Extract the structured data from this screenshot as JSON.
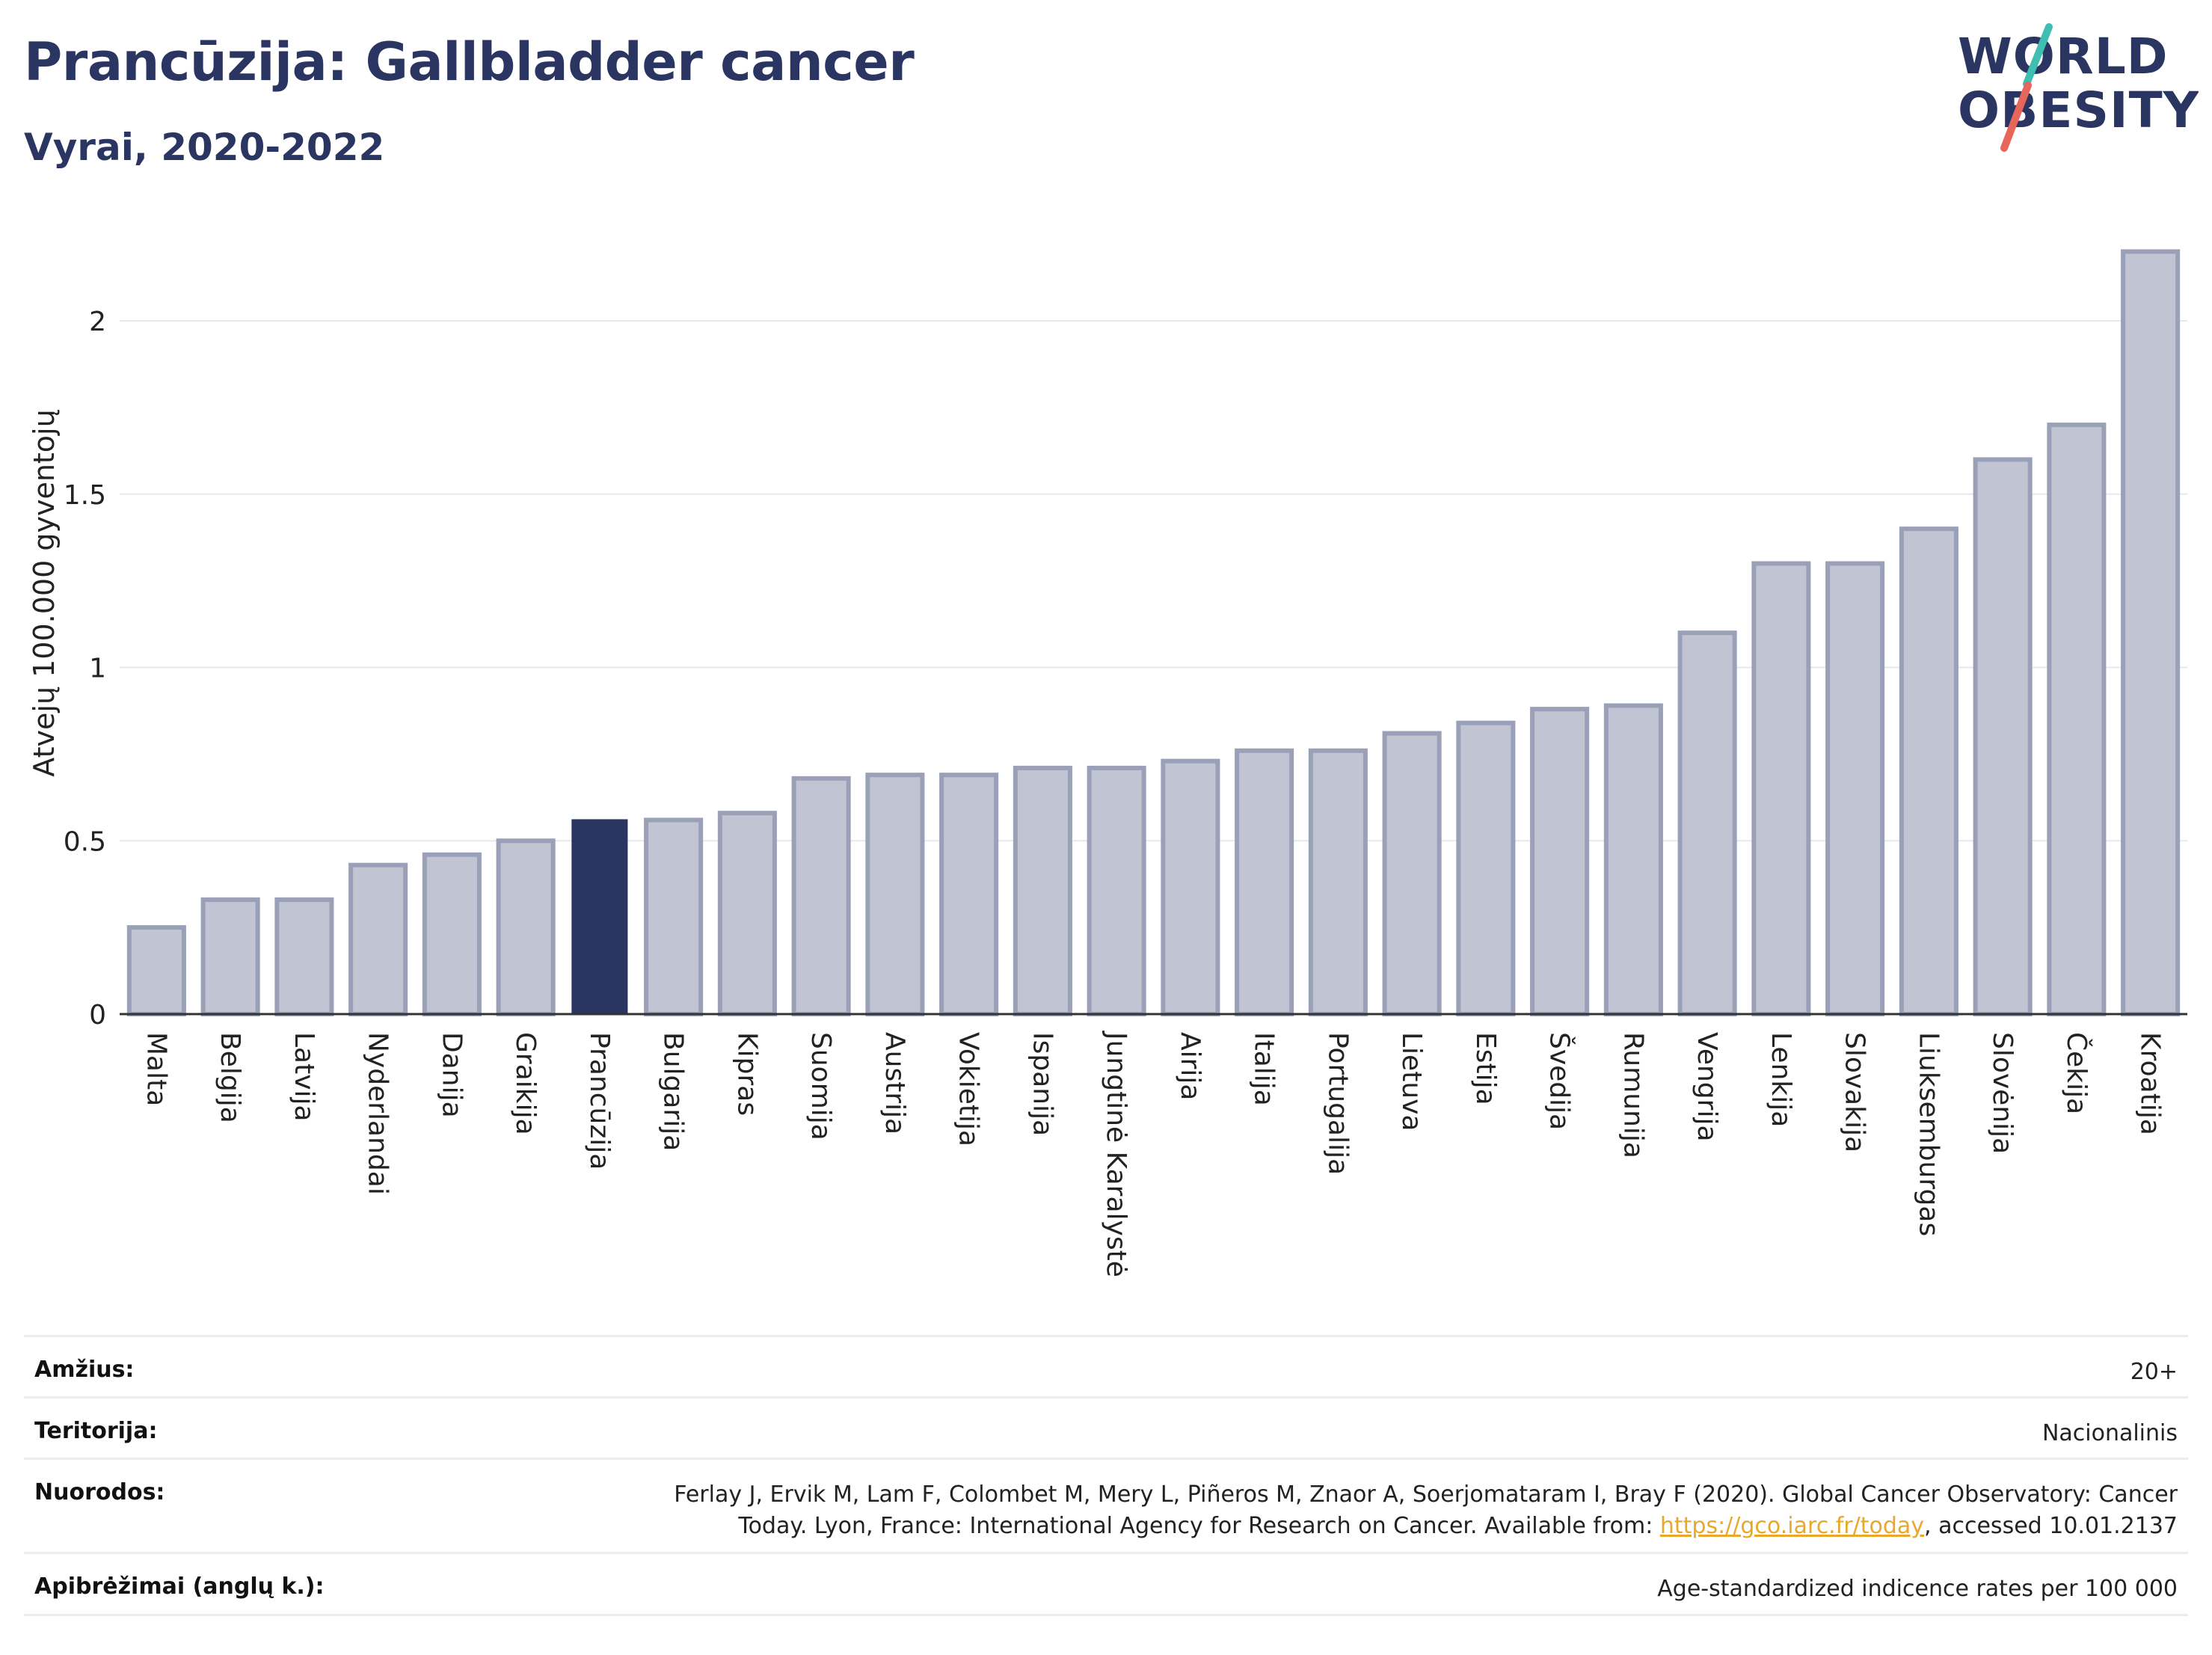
{
  "header": {
    "title": "Prancūzija: Gallbladder cancer",
    "subtitle": "Vyrai, 2020-2022"
  },
  "logo": {
    "line1": "WORLD",
    "line2": "OBESITY",
    "accent_teal": "#3fbfb2",
    "accent_red": "#e8655a",
    "text_color": "#2b3561"
  },
  "chart_data": {
    "type": "bar",
    "ylabel": "Atvejų 100.000 gyventojų",
    "xlabel": "",
    "ylim": [
      0,
      2.3
    ],
    "yticks": [
      0,
      0.5,
      1,
      1.5,
      2
    ],
    "ytick_labels": [
      "0",
      "0.5",
      "1",
      "1.5",
      "2"
    ],
    "grid": true,
    "highlight": "Prancūzija",
    "colors": {
      "bar": "#c0c4d3",
      "bar_edge": "#9aa0b8",
      "highlight": "#2b3561"
    },
    "categories": [
      "Malta",
      "Belgija",
      "Latvija",
      "Nyderlandai",
      "Danija",
      "Graikija",
      "Prancūzija",
      "Bulgarija",
      "Kipras",
      "Suomija",
      "Austrija",
      "Vokietija",
      "Ispanija",
      "Jungtinė Karalystė",
      "Airija",
      "Italija",
      "Portugalija",
      "Lietuva",
      "Estija",
      "Švedija",
      "Rumunija",
      "Vengrija",
      "Lenkija",
      "Slovakija",
      "Liuksemburgas",
      "Slovėnija",
      "Čekija",
      "Kroatija"
    ],
    "values": [
      0.25,
      0.33,
      0.33,
      0.43,
      0.46,
      0.5,
      0.56,
      0.56,
      0.58,
      0.68,
      0.69,
      0.69,
      0.71,
      0.71,
      0.73,
      0.76,
      0.76,
      0.81,
      0.84,
      0.88,
      0.89,
      1.1,
      1.3,
      1.3,
      1.4,
      1.6,
      1.7,
      2.2
    ]
  },
  "info": {
    "age_label": "Amžius:",
    "age_value": "20+",
    "territory_label": "Teritorija:",
    "territory_value": "Nacionalinis",
    "refs_label": "Nuorodos:",
    "refs_line1": "Ferlay J, Ervik M, Lam F, Colombet M, Mery L, Piñeros M, Znaor A, Soerjomataram I, Bray F (2020). Global Cancer Observatory: Cancer",
    "refs_line2_before": "Today. Lyon, France: International Agency for Research on Cancer. Available from: ",
    "refs_link": "https://gco.iarc.fr/today",
    "refs_line2_after": ", accessed 10.01.2137",
    "defs_label": "Apibrėžimai (anglų k.):",
    "defs_value": "Age-standardized indicence rates per 100 000"
  }
}
